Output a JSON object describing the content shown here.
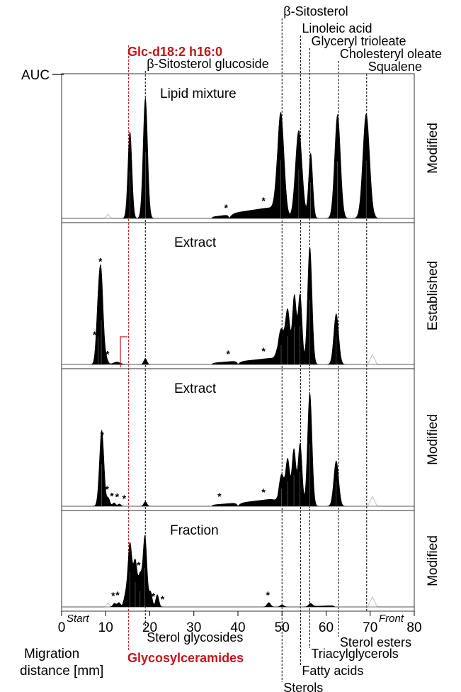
{
  "chart_data": {
    "type": "area",
    "ylabel": "AUC",
    "xlabel": "Migration distance [mm]",
    "xlim": [
      0,
      80
    ],
    "xticks": [
      0,
      10,
      20,
      30,
      40,
      50,
      60,
      70,
      80
    ],
    "x_start_label": "Start",
    "x_front_label": "Front",
    "highlight": {
      "x": 15.2,
      "label": "Glc-d18:2 h16:0",
      "bottom_label": "Glycosylceramides",
      "color": "#c0161b"
    },
    "top_markers": [
      {
        "x": 19.0,
        "label": "β-Sitosterol glucoside"
      },
      {
        "x": 50.0,
        "label": "β-Sitosterol"
      },
      {
        "x": 54.2,
        "label": "Linoleic acid"
      },
      {
        "x": 56.3,
        "label": "Glyceryl trioleate"
      },
      {
        "x": 62.8,
        "label": "Cholesteryl oleate"
      },
      {
        "x": 69.2,
        "label": "Squalene"
      }
    ],
    "bottom_markers": [
      {
        "x": 19.0,
        "label": "Sterol glycosides"
      },
      {
        "x": 50.0,
        "label": "Sterols"
      },
      {
        "x": 54.2,
        "label": "Fatty acids"
      },
      {
        "x": 56.3,
        "label": "Triacylglycerols"
      },
      {
        "x": 62.8,
        "label": "Sterol esters"
      }
    ],
    "panels": [
      {
        "title": "Lipid mixture",
        "side_label": "Modified",
        "peaks": [
          {
            "x": 15.5,
            "h": 0.72,
            "w": 0.45
          },
          {
            "x": 19.0,
            "h": 1.0,
            "w": 0.5
          },
          {
            "x": 49.7,
            "h": 0.88,
            "w": 0.75
          },
          {
            "x": 53.8,
            "h": 0.73,
            "w": 0.75
          },
          {
            "x": 56.5,
            "h": 0.54,
            "w": 0.45
          },
          {
            "x": 62.6,
            "h": 0.86,
            "w": 0.65
          },
          {
            "x": 69.1,
            "h": 0.87,
            "w": 0.75
          }
        ],
        "humps": [
          {
            "from": 34,
            "to": 38,
            "h": 0.03
          },
          {
            "from": 38,
            "to": 49,
            "h": 0.1
          }
        ],
        "stars": [
          37.5,
          46.0
        ]
      },
      {
        "title": "Extract",
        "side_label": "Established",
        "peaks": [
          {
            "x": 8.3,
            "h": 0.43,
            "w": 0.45
          },
          {
            "x": 9.0,
            "h": 0.68,
            "w": 0.45
          },
          {
            "x": 10.0,
            "h": 0.06,
            "w": 0.4
          },
          {
            "x": 12.5,
            "h": 0.02,
            "w": 0.8
          },
          {
            "x": 19.0,
            "h": 0.05,
            "w": 0.35
          },
          {
            "x": 49.8,
            "h": 0.3,
            "w": 0.7
          },
          {
            "x": 51.3,
            "h": 0.44,
            "w": 0.5
          },
          {
            "x": 52.8,
            "h": 0.58,
            "w": 0.45
          },
          {
            "x": 54.1,
            "h": 0.59,
            "w": 0.45
          },
          {
            "x": 56.3,
            "h": 1.0,
            "w": 0.5
          },
          {
            "x": 62.3,
            "h": 0.43,
            "w": 0.55
          }
        ],
        "humps": [
          {
            "from": 34,
            "to": 40,
            "h": 0.03
          },
          {
            "from": 40,
            "to": 49,
            "h": 0.06
          }
        ],
        "stars": [
          7.7,
          9.0,
          10.6,
          38.0,
          46.0
        ]
      },
      {
        "title": "Extract",
        "side_label": "Modified",
        "peaks": [
          {
            "x": 9.1,
            "h": 0.67,
            "w": 0.5
          },
          {
            "x": 10.6,
            "h": 0.07,
            "w": 0.35
          },
          {
            "x": 11.9,
            "h": 0.03,
            "w": 0.35
          },
          {
            "x": 13.1,
            "h": 0.02,
            "w": 0.35
          },
          {
            "x": 19.0,
            "h": 0.04,
            "w": 0.35
          },
          {
            "x": 49.9,
            "h": 0.28,
            "w": 0.6
          },
          {
            "x": 51.3,
            "h": 0.4,
            "w": 0.45
          },
          {
            "x": 52.7,
            "h": 0.5,
            "w": 0.45
          },
          {
            "x": 54.1,
            "h": 0.55,
            "w": 0.45
          },
          {
            "x": 56.3,
            "h": 1.0,
            "w": 0.5
          },
          {
            "x": 62.3,
            "h": 0.4,
            "w": 0.55
          }
        ],
        "humps": [
          {
            "from": 34,
            "to": 40,
            "h": 0.03
          },
          {
            "from": 40,
            "to": 49,
            "h": 0.07
          }
        ],
        "stars": [
          9.4,
          10.5,
          11.6,
          12.8,
          14.4,
          36.0,
          46.0
        ]
      },
      {
        "title": "Fraction",
        "side_label": "Modified",
        "peaks": [
          {
            "x": 12.0,
            "h": 0.05,
            "w": 0.35
          },
          {
            "x": 13.0,
            "h": 0.06,
            "w": 0.35
          },
          {
            "x": 14.5,
            "h": 0.15,
            "w": 0.4
          },
          {
            "x": 15.5,
            "h": 0.87,
            "w": 0.45
          },
          {
            "x": 16.7,
            "h": 0.63,
            "w": 0.45
          },
          {
            "x": 17.8,
            "h": 0.4,
            "w": 0.4
          },
          {
            "x": 18.9,
            "h": 0.98,
            "w": 0.45
          },
          {
            "x": 20.2,
            "h": 0.2,
            "w": 0.35
          },
          {
            "x": 21.7,
            "h": 0.17,
            "w": 0.35
          },
          {
            "x": 47.0,
            "h": 0.06,
            "w": 0.4
          },
          {
            "x": 50.0,
            "h": 0.03,
            "w": 0.4
          },
          {
            "x": 56.5,
            "h": 0.05,
            "w": 0.45
          }
        ],
        "humps": [
          {
            "from": 57,
            "to": 62,
            "h": 0.02
          }
        ],
        "stars": [
          11.9,
          12.9,
          17.7,
          21.0,
          23.1,
          47.0
        ]
      }
    ]
  }
}
